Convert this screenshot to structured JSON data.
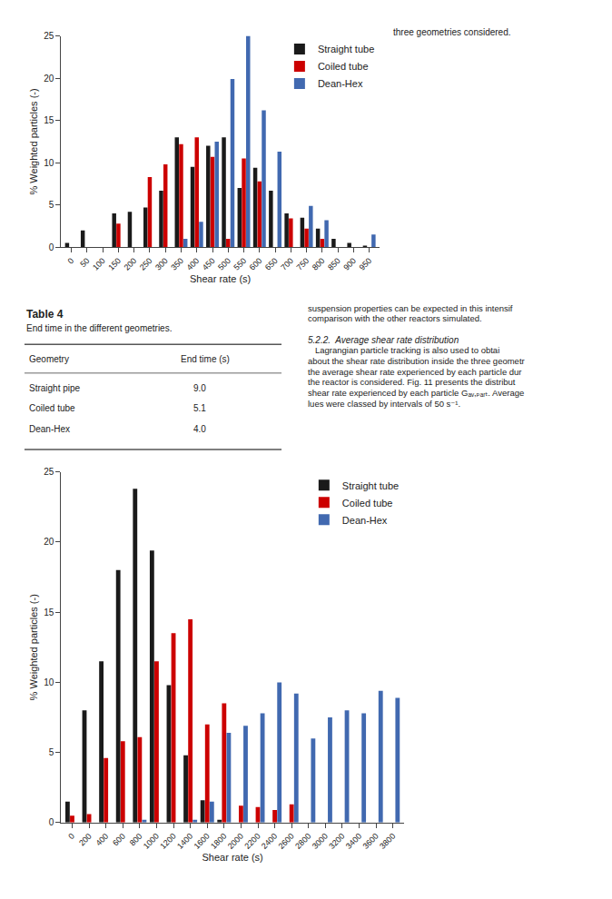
{
  "chart_data": [
    {
      "type": "bar",
      "categories": [
        0,
        50,
        100,
        150,
        200,
        250,
        300,
        350,
        400,
        450,
        500,
        550,
        600,
        650,
        700,
        750,
        800,
        850,
        900,
        950
      ],
      "series": [
        {
          "name": "Straight tube",
          "color": "#1a1a1a",
          "values": [
            0.5,
            2.0,
            0.0,
            4.0,
            4.2,
            4.7,
            6.7,
            13.0,
            9.5,
            12.0,
            13.0,
            7.0,
            9.4,
            6.7,
            4.0,
            3.5,
            2.2,
            1.0,
            0.5,
            0.2
          ]
        },
        {
          "name": "Coiled tube",
          "color": "#cc0000",
          "values": [
            0.0,
            0.0,
            0.0,
            2.8,
            0.0,
            8.3,
            9.8,
            12.2,
            13.0,
            10.7,
            1.0,
            10.5,
            7.8,
            0.0,
            3.4,
            2.2,
            1.0,
            0.0,
            0.0,
            0.0
          ]
        },
        {
          "name": "Dean-Hex",
          "color": "#4169b0",
          "values": [
            0.0,
            0.0,
            0.0,
            0.0,
            0.0,
            0.0,
            0.0,
            1.0,
            3.0,
            12.5,
            19.9,
            25.0,
            16.2,
            11.3,
            0.0,
            4.9,
            3.2,
            0.0,
            0.0,
            1.5
          ]
        }
      ],
      "xlabel": "Shear rate (s)",
      "ylabel": "% Weighted particles (-)",
      "xlim": [
        -32.5,
        982.5
      ],
      "xticks": [
        0,
        50,
        100,
        150,
        200,
        250,
        300,
        350,
        400,
        450,
        500,
        550,
        600,
        650,
        700,
        750,
        800,
        850,
        900,
        950
      ],
      "ylim": [
        0,
        25
      ],
      "yticks": [
        0,
        5,
        10,
        15,
        20,
        25
      ],
      "grid": false,
      "legend": "upper right"
    },
    {
      "type": "bar",
      "categories": [
        0,
        200,
        400,
        600,
        800,
        1000,
        1200,
        1400,
        1600,
        1800,
        2000,
        2200,
        2400,
        2600,
        2800,
        3000,
        3200,
        3400,
        3600,
        3800
      ],
      "series": [
        {
          "name": "Straight tube",
          "color": "#1a1a1a",
          "values": [
            1.5,
            8.0,
            11.5,
            18.0,
            23.8,
            19.4,
            9.8,
            4.8,
            1.6,
            0.2,
            0.0,
            0.0,
            0.0,
            0.0,
            0.0,
            0.0,
            0.0,
            0.0,
            0.0,
            0.0
          ]
        },
        {
          "name": "Coiled tube",
          "color": "#cc0000",
          "values": [
            0.5,
            0.6,
            4.6,
            5.8,
            6.1,
            11.5,
            13.5,
            14.5,
            7.0,
            8.5,
            1.2,
            1.1,
            0.9,
            1.3,
            0.0,
            0.0,
            0.0,
            0.0,
            0.0,
            0.0
          ]
        },
        {
          "name": "Dean-Hex",
          "color": "#4169b0",
          "values": [
            0.0,
            0.0,
            0.0,
            0.0,
            0.2,
            0.0,
            0.0,
            0.2,
            1.5,
            6.4,
            6.9,
            7.8,
            10.0,
            9.2,
            6.0,
            7.5,
            8.0,
            7.8,
            9.4,
            8.9
          ]
        }
      ],
      "xlabel": "Shear rate (s)",
      "ylabel": "% Weighted particles (-)",
      "xlim": [
        -130,
        3930
      ],
      "xticks": [
        0,
        200,
        400,
        600,
        800,
        1000,
        1200,
        1400,
        1600,
        1800,
        2000,
        2200,
        2400,
        2600,
        2800,
        3000,
        3200,
        3400,
        3600,
        3800
      ],
      "ylim": [
        0,
        25
      ],
      "yticks": [
        0,
        5,
        10,
        15,
        20,
        25
      ],
      "grid": false,
      "legend": "upper right"
    }
  ],
  "caption": "three geometries considered.",
  "table": {
    "title": "Table 4",
    "subtitle": "End time in the different geometries.",
    "headers": [
      "Geometry",
      "End time (s)"
    ],
    "rows": [
      [
        "Straight pipe",
        "9.0"
      ],
      [
        "Coiled tube",
        "5.1"
      ],
      [
        "Dean-Hex",
        "4.0"
      ]
    ]
  },
  "text": {
    "paragraph": [
      "suspension properties can be expected in this intensif",
      "comparison with the other reactors simulated."
    ],
    "heading": "5.2.2.  Average shear rate distribution",
    "body": [
      "   Lagrangian particle tracking is also used to obtai",
      "about the shear rate distribution inside the three geometr",
      "the average shear rate experienced by each particle dur",
      "the reactor is considered. Fig. 11 presents the distribut",
      "shear rate experienced by each particle Gₐᵥ,ₚₐᵣₜ. Average",
      "lues were classed by intervals of 50 s⁻¹."
    ]
  }
}
